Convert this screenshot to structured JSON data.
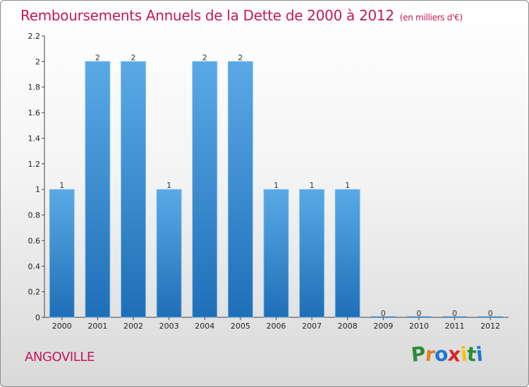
{
  "title": "Remboursements Annuels de la Dette de 2000 à 2012",
  "unit": "(en milliers d'€)",
  "commune": "ANGOVILLE",
  "logo": {
    "letters": [
      "P",
      "r",
      "o",
      "x",
      "i",
      "t",
      "i"
    ]
  },
  "colors": {
    "title": "#c2185b",
    "bar_top": "#5aa9e6",
    "bar_bottom": "#1f6fb8",
    "logo": [
      "#2e8b3a",
      "#e67e22",
      "#1f77d4",
      "#d62728",
      "#f1c40f",
      "#2e8b3a",
      "#1f77d4"
    ]
  },
  "chart_data": {
    "type": "bar",
    "categories": [
      "2000",
      "2001",
      "2002",
      "2003",
      "2004",
      "2005",
      "2006",
      "2007",
      "2008",
      "2009",
      "2010",
      "2011",
      "2012"
    ],
    "values": [
      1,
      2,
      2,
      1,
      2,
      2,
      1,
      1,
      1,
      0,
      0,
      0,
      0
    ],
    "value_labels": [
      "1",
      "2",
      "2",
      "1",
      "2",
      "2",
      "1",
      "1",
      "1",
      "0",
      "0",
      "0",
      "0"
    ],
    "yticks": [
      "0",
      "0.2",
      "0.4",
      "0.6",
      "0.8",
      "1",
      "1.2",
      "1.4",
      "1.6",
      "1.8",
      "2",
      "2.2"
    ],
    "ylim": [
      0,
      2.2
    ],
    "grid": false,
    "legend": "none"
  }
}
